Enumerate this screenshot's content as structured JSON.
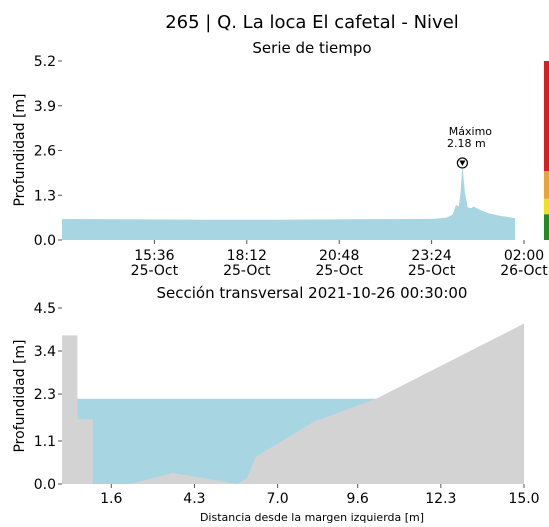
{
  "title": "265 | Q. La loca El cafetal - Nivel",
  "chart_data": [
    {
      "type": "area",
      "title": "Serie de tiempo",
      "ylabel": "Profundidad [m]",
      "xlabel": "",
      "ylim": [
        0,
        5.2
      ],
      "yticks": [
        "0.0",
        "1.3",
        "2.6",
        "3.9",
        "5.2"
      ],
      "xlim": [
        "2021-10-25T13:00",
        "2021-10-26T02:00"
      ],
      "xticks": [
        {
          "at": "2021-10-25T15:36",
          "time": "15:36",
          "date": "25-Oct"
        },
        {
          "at": "2021-10-25T18:12",
          "time": "18:12",
          "date": "25-Oct"
        },
        {
          "at": "2021-10-25T20:48",
          "time": "20:48",
          "date": "25-Oct"
        },
        {
          "at": "2021-10-25T23:24",
          "time": "23:24",
          "date": "25-Oct"
        },
        {
          "at": "2021-10-26T02:00",
          "time": "02:00",
          "date": "26-Oct"
        }
      ],
      "color": "#a8d5e2",
      "series": [
        {
          "x": [
            "2021-10-25T13:00",
            "2021-10-25T15:00",
            "2021-10-25T17:00",
            "2021-10-25T19:00",
            "2021-10-25T21:00",
            "2021-10-25T23:00",
            "2021-10-25T23:30",
            "2021-10-25T23:50",
            "2021-10-26T00:00",
            "2021-10-26T00:05",
            "2021-10-26T00:10",
            "2021-10-26T00:13",
            "2021-10-26T00:16",
            "2021-10-26T00:20",
            "2021-10-26T00:25",
            "2021-10-26T00:30",
            "2021-10-26T00:35",
            "2021-10-26T00:45",
            "2021-10-26T01:00",
            "2021-10-26T01:20",
            "2021-10-26T01:40",
            "2021-10-26T01:45"
          ],
          "y": [
            0.61,
            0.6,
            0.59,
            0.59,
            0.6,
            0.61,
            0.62,
            0.65,
            0.75,
            1.02,
            0.97,
            1.4,
            2.18,
            1.4,
            0.95,
            0.92,
            0.97,
            0.88,
            0.78,
            0.7,
            0.65,
            0.63
          ]
        }
      ],
      "annotation": {
        "label": "Máximo",
        "value": "2.18 m",
        "x": "2021-10-26T00:16",
        "y": 2.18
      },
      "threshold_bar": {
        "colors": [
          "#228b22",
          "#f2e01e",
          "#e8a33a",
          "#d42020"
        ],
        "bounds": [
          0,
          0.75,
          1.2,
          2.0,
          5.2
        ]
      }
    },
    {
      "type": "area",
      "title": "Sección transversal 2021-10-26 00:30:00",
      "xlabel": "Distancia desde la margen izquierda [m]",
      "ylabel": "Profundidad [m]",
      "xlim": [
        0,
        15.0
      ],
      "ylim": [
        0,
        4.5
      ],
      "xticks": [
        1.6,
        4.3,
        7.0,
        9.6,
        12.3,
        15.0
      ],
      "xtick_labels": [
        "1.6",
        "4.3",
        "7.0",
        "9.6",
        "12.3",
        "15.0"
      ],
      "yticks": [
        "0.0",
        "1.1",
        "2.3",
        "3.4",
        "4.5"
      ],
      "water_level": 2.18,
      "water_color": "#a8d5e2",
      "ground_color": "#d3d3d3",
      "ground": {
        "x": [
          0,
          0.5,
          0.5,
          1.0,
          1.0,
          2.2,
          3.6,
          5.7,
          6.0,
          6.3,
          8.2,
          10.2,
          15.0
        ],
        "y": [
          3.8,
          3.8,
          1.65,
          1.65,
          0.0,
          0.0,
          0.28,
          0.0,
          0.15,
          0.7,
          1.6,
          2.18,
          4.1
        ]
      }
    }
  ]
}
